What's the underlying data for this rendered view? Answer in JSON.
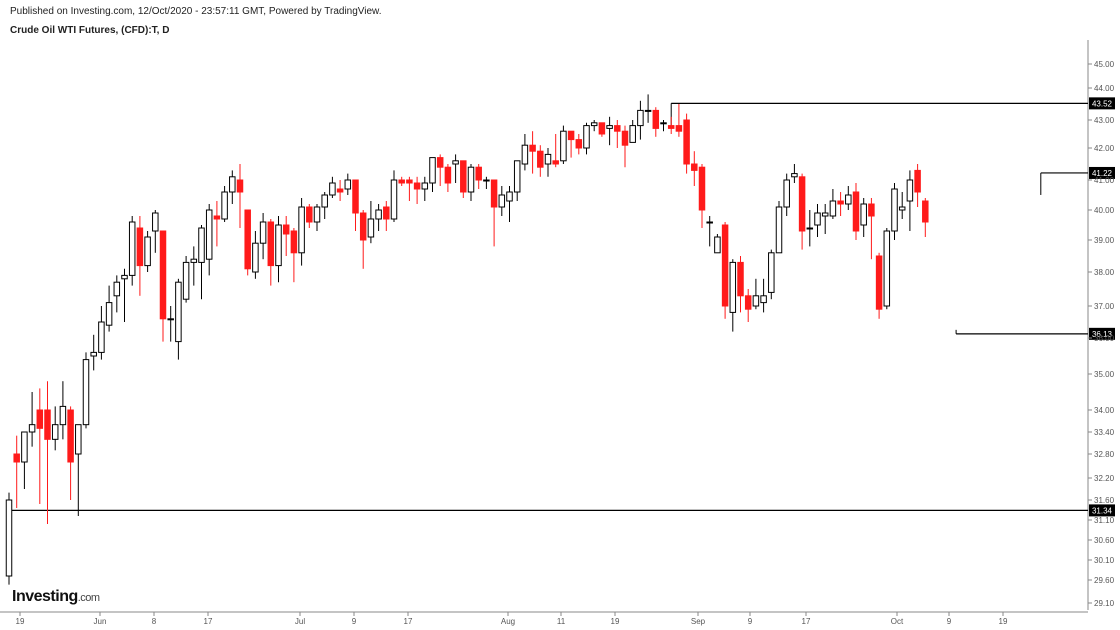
{
  "header": {
    "published": "Published on Investing.com, 12/Oct/2020 - 23:57:11 GMT, Powered by TradingView.",
    "symbol": "Crude Oil WTI Futures, (CFD):T, D"
  },
  "logo": {
    "main": "Investing",
    "suffix": ".com"
  },
  "colors": {
    "up_body": "#ffffff",
    "up_border": "#000000",
    "down": "#ff1a1a",
    "level_line": "#000000"
  },
  "chart_data": {
    "type": "candlestick",
    "price_ticks": [
      "45.00",
      "44.00",
      "43.00",
      "42.00",
      "41.00",
      "40.00",
      "39.00",
      "38.00",
      "37.00",
      "36.00",
      "35.00",
      "34.00",
      "33.40",
      "32.80",
      "32.20",
      "31.60",
      "31.10",
      "30.60",
      "30.10",
      "29.60",
      "29.10"
    ],
    "x_ticks": [
      "19",
      "Jun",
      "8",
      "17",
      "Jul",
      "9",
      "17",
      "Aug",
      "11",
      "19",
      "Sep",
      "9",
      "17",
      "Oct",
      "9",
      "19"
    ],
    "levels": [
      {
        "label": "43.52",
        "value": 43.52,
        "from": 86
      },
      {
        "label": "41.22",
        "value": 41.22,
        "from": 134
      },
      {
        "label": "36.13",
        "value": 36.13,
        "from": 123
      },
      {
        "label": "31.34",
        "value": 31.34,
        "from": 0
      }
    ],
    "candles": [
      [
        29.7,
        31.6,
        29.5,
        31.8
      ],
      [
        32.8,
        32.6,
        31.4,
        33.3
      ],
      [
        32.6,
        33.4,
        31.9,
        33.4
      ],
      [
        33.4,
        33.6,
        33.0,
        34.5
      ],
      [
        34.0,
        33.5,
        31.5,
        34.6
      ],
      [
        34.0,
        33.2,
        31.0,
        34.8
      ],
      [
        33.2,
        33.6,
        32.9,
        34.1
      ],
      [
        33.6,
        34.1,
        33.2,
        34.8
      ],
      [
        34.0,
        32.6,
        31.6,
        34.1
      ],
      [
        32.8,
        33.6,
        31.2,
        33.6
      ],
      [
        33.6,
        35.4,
        33.5,
        35.6
      ],
      [
        35.5,
        35.6,
        35.1,
        36.1
      ],
      [
        35.6,
        36.5,
        35.4,
        37.0
      ],
      [
        36.4,
        37.1,
        36.2,
        37.6
      ],
      [
        37.3,
        37.7,
        36.8,
        37.9
      ],
      [
        37.8,
        37.9,
        36.5,
        38.1
      ],
      [
        37.9,
        39.6,
        37.6,
        39.8
      ],
      [
        39.4,
        38.2,
        37.3,
        39.8
      ],
      [
        38.2,
        39.1,
        38.0,
        39.3
      ],
      [
        39.3,
        39.9,
        38.6,
        40.0
      ],
      [
        39.3,
        36.6,
        35.9,
        39.3
      ],
      [
        36.6,
        36.6,
        35.9,
        37.0
      ],
      [
        35.9,
        37.7,
        35.4,
        37.8
      ],
      [
        37.2,
        38.3,
        37.1,
        38.5
      ],
      [
        38.3,
        38.4,
        37.6,
        38.8
      ],
      [
        38.3,
        39.4,
        37.2,
        39.5
      ],
      [
        38.4,
        40.0,
        37.9,
        40.2
      ],
      [
        39.8,
        39.7,
        38.8,
        40.3
      ],
      [
        39.7,
        40.6,
        39.6,
        40.8
      ],
      [
        40.6,
        41.1,
        40.2,
        41.3
      ],
      [
        41.0,
        40.6,
        39.4,
        41.5
      ],
      [
        40.0,
        38.1,
        37.9,
        40.0
      ],
      [
        38.0,
        38.9,
        37.8,
        39.3
      ],
      [
        38.9,
        39.6,
        38.4,
        39.9
      ],
      [
        39.6,
        38.2,
        37.6,
        39.7
      ],
      [
        38.2,
        39.5,
        37.7,
        39.8
      ],
      [
        39.5,
        39.2,
        38.5,
        39.8
      ],
      [
        39.3,
        38.6,
        37.7,
        39.4
      ],
      [
        38.6,
        40.1,
        38.2,
        40.4
      ],
      [
        40.1,
        39.6,
        39.4,
        40.2
      ],
      [
        39.6,
        40.1,
        39.3,
        40.2
      ],
      [
        40.1,
        40.5,
        39.7,
        40.6
      ],
      [
        40.5,
        40.9,
        40.4,
        41.1
      ],
      [
        40.7,
        40.6,
        40.3,
        41.0
      ],
      [
        40.7,
        41.0,
        40.5,
        41.2
      ],
      [
        41.0,
        39.9,
        39.3,
        41.0
      ],
      [
        39.9,
        39.0,
        38.1,
        40.0
      ],
      [
        39.1,
        39.7,
        38.9,
        40.3
      ],
      [
        39.7,
        40.0,
        39.3,
        40.2
      ],
      [
        40.1,
        39.7,
        39.3,
        40.3
      ],
      [
        39.7,
        41.0,
        39.6,
        41.3
      ],
      [
        41.0,
        40.9,
        40.8,
        41.1
      ],
      [
        41.0,
        40.9,
        40.3,
        41.1
      ],
      [
        40.9,
        40.7,
        40.2,
        41.1
      ],
      [
        40.7,
        40.9,
        40.3,
        41.1
      ],
      [
        40.9,
        41.7,
        40.6,
        41.7
      ],
      [
        41.7,
        41.4,
        40.8,
        41.8
      ],
      [
        41.4,
        40.9,
        40.6,
        41.5
      ],
      [
        41.5,
        41.6,
        40.9,
        41.8
      ],
      [
        41.6,
        40.6,
        40.4,
        41.6
      ],
      [
        40.6,
        41.4,
        40.3,
        41.5
      ],
      [
        41.4,
        41.0,
        40.7,
        41.5
      ],
      [
        41.0,
        41.0,
        40.7,
        41.1
      ],
      [
        41.0,
        40.1,
        38.8,
        41.0
      ],
      [
        40.1,
        40.5,
        39.8,
        40.8
      ],
      [
        40.3,
        40.6,
        39.6,
        40.8
      ],
      [
        40.6,
        41.6,
        40.3,
        41.6
      ],
      [
        41.5,
        42.1,
        41.3,
        42.5
      ],
      [
        42.1,
        41.9,
        41.2,
        42.6
      ],
      [
        41.9,
        41.4,
        41.1,
        42.1
      ],
      [
        41.5,
        41.8,
        41.1,
        42.0
      ],
      [
        41.6,
        41.5,
        41.4,
        42.5
      ],
      [
        41.6,
        42.6,
        41.5,
        42.8
      ],
      [
        42.6,
        42.3,
        41.7,
        42.6
      ],
      [
        42.3,
        42.0,
        41.8,
        42.5
      ],
      [
        42.0,
        42.8,
        41.8,
        42.9
      ],
      [
        42.8,
        42.9,
        42.6,
        43.0
      ],
      [
        42.9,
        42.5,
        42.4,
        42.9
      ],
      [
        42.7,
        42.8,
        42.1,
        43.1
      ],
      [
        42.8,
        42.6,
        42.0,
        43.0
      ],
      [
        42.6,
        42.1,
        41.4,
        42.8
      ],
      [
        42.2,
        42.8,
        42.2,
        43.0
      ],
      [
        42.8,
        43.3,
        42.3,
        43.6
      ],
      [
        43.3,
        43.3,
        42.9,
        43.8
      ],
      [
        43.3,
        42.7,
        42.4,
        43.4
      ],
      [
        42.9,
        42.9,
        42.6,
        43.0
      ],
      [
        42.8,
        42.7,
        42.5,
        43.1
      ],
      [
        42.8,
        42.6,
        42.4,
        43.5
      ],
      [
        43.0,
        41.5,
        41.2,
        43.2
      ],
      [
        41.5,
        41.3,
        40.8,
        41.9
      ],
      [
        41.4,
        40.0,
        39.4,
        41.5
      ],
      [
        39.6,
        39.6,
        38.8,
        39.8
      ],
      [
        38.6,
        39.1,
        38.6,
        39.2
      ],
      [
        39.5,
        37.0,
        36.6,
        39.6
      ],
      [
        36.8,
        38.3,
        36.2,
        38.4
      ],
      [
        38.3,
        37.3,
        36.8,
        38.5
      ],
      [
        37.3,
        36.9,
        36.5,
        37.5
      ],
      [
        37.0,
        37.3,
        36.9,
        37.8
      ],
      [
        37.1,
        37.3,
        36.8,
        37.8
      ],
      [
        37.4,
        38.6,
        37.2,
        38.7
      ],
      [
        38.6,
        40.1,
        38.6,
        40.3
      ],
      [
        40.1,
        41.0,
        39.8,
        41.2
      ],
      [
        41.1,
        41.2,
        40.9,
        41.5
      ],
      [
        41.1,
        39.3,
        38.7,
        41.2
      ],
      [
        39.4,
        39.4,
        38.8,
        40.0
      ],
      [
        39.5,
        39.9,
        39.1,
        40.2
      ],
      [
        39.8,
        39.9,
        39.2,
        40.2
      ],
      [
        39.8,
        40.3,
        39.7,
        40.7
      ],
      [
        40.3,
        40.2,
        39.8,
        40.6
      ],
      [
        40.2,
        40.5,
        40.0,
        40.8
      ],
      [
        40.6,
        39.3,
        39.0,
        40.9
      ],
      [
        39.5,
        40.2,
        39.1,
        40.4
      ],
      [
        40.2,
        39.8,
        38.4,
        40.4
      ],
      [
        38.5,
        36.9,
        36.6,
        38.6
      ],
      [
        37.0,
        39.3,
        36.9,
        39.4
      ],
      [
        39.3,
        40.7,
        39.0,
        40.9
      ],
      [
        40.0,
        40.1,
        39.7,
        40.6
      ],
      [
        40.3,
        41.0,
        39.3,
        41.3
      ],
      [
        41.3,
        40.6,
        40.1,
        41.5
      ],
      [
        40.3,
        39.6,
        39.1,
        40.4
      ]
    ]
  }
}
